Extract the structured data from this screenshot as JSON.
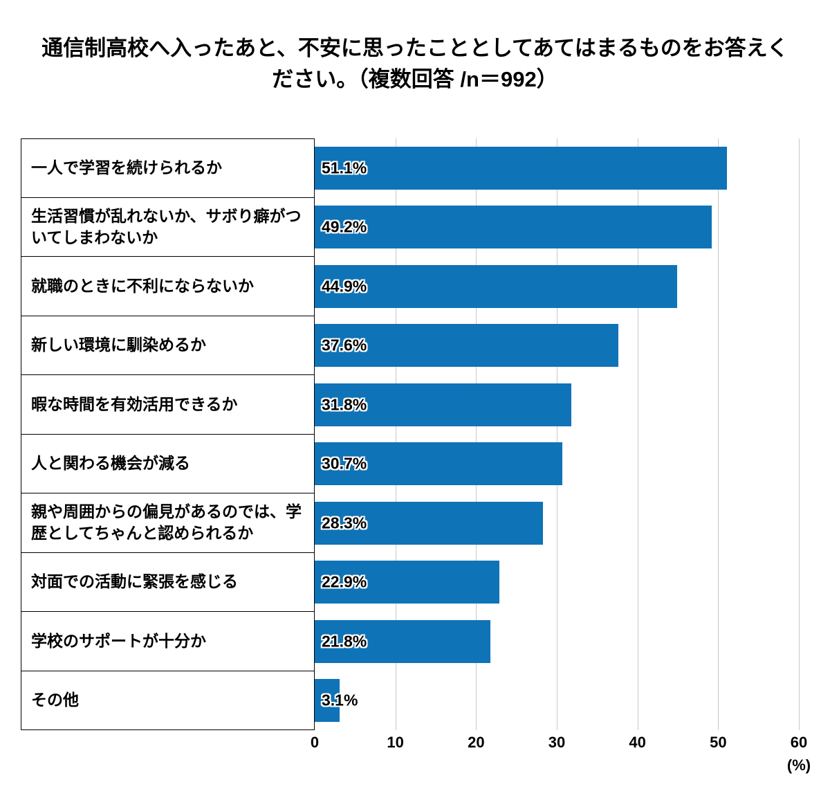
{
  "title": "通信制高校へ入ったあと、不安に思ったこととしてあてはまるものをお答えください。（複数回答 /n＝992）",
  "chart_data": {
    "type": "bar",
    "orientation": "horizontal",
    "title": "通信制高校へ入ったあと、不安に思ったこととしてあてはまるものをお答えください。（複数回答 /n＝992）",
    "n_label": "n＝992",
    "categories": [
      "一人で学習を続けられるか",
      "生活習慣が乱れないか、サボり癖がついてしまわないか",
      "就職のときに不利にならないか",
      "新しい環境に馴染めるか",
      "暇な時間を有効活用できるか",
      "人と関わる機会が減る",
      "親や周囲からの偏見があるのでは、学歴としてちゃんと認められるか",
      "対面での活動に緊張を感じる",
      "学校のサポートが十分か",
      "その他"
    ],
    "values": [
      51.1,
      49.2,
      44.9,
      37.6,
      31.8,
      30.7,
      28.3,
      22.9,
      21.8,
      3.1
    ],
    "value_labels": [
      "51.1%",
      "49.2%",
      "44.9%",
      "37.6%",
      "31.8%",
      "30.7%",
      "28.3%",
      "22.9%",
      "21.8%",
      "3.1%"
    ],
    "xlabel": "",
    "ylabel": "",
    "xlim": [
      0,
      60
    ],
    "xticks": [
      0,
      10,
      20,
      30,
      40,
      50,
      60
    ],
    "x_unit": "(%)",
    "bar_color": "#0f73b7",
    "gridline_color": "#c9c9c9",
    "grid": "vertical",
    "legend": "none"
  }
}
